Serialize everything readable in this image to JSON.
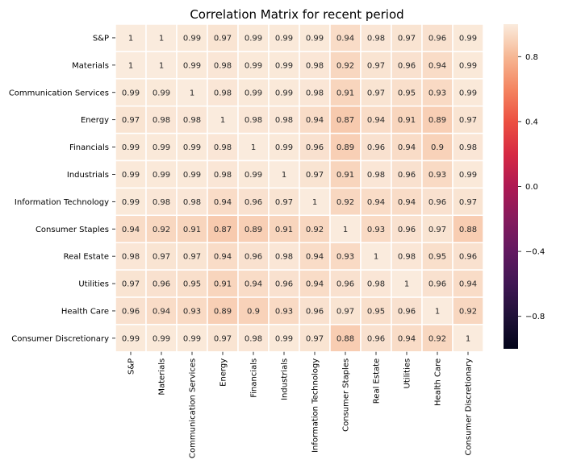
{
  "chart_data": {
    "type": "heatmap",
    "title": "Correlation Matrix for recent period",
    "xlabel": "",
    "ylabel": "",
    "labels": [
      "S&P",
      "Materials",
      "Communication Services",
      "Energy",
      "Financials",
      "Industrials",
      "Information Technology",
      "Consumer Staples",
      "Real Estate",
      "Utilities",
      "Health Care",
      "Consumer Discretionary"
    ],
    "matrix": [
      [
        1,
        1,
        0.99,
        0.97,
        0.99,
        0.99,
        0.99,
        0.94,
        0.98,
        0.97,
        0.96,
        0.99
      ],
      [
        1,
        1,
        0.99,
        0.98,
        0.99,
        0.99,
        0.98,
        0.92,
        0.97,
        0.96,
        0.94,
        0.99
      ],
      [
        0.99,
        0.99,
        1,
        0.98,
        0.99,
        0.99,
        0.98,
        0.91,
        0.97,
        0.95,
        0.93,
        0.99
      ],
      [
        0.97,
        0.98,
        0.98,
        1,
        0.98,
        0.98,
        0.94,
        0.87,
        0.94,
        0.91,
        0.89,
        0.97
      ],
      [
        0.99,
        0.99,
        0.99,
        0.98,
        1,
        0.99,
        0.96,
        0.89,
        0.96,
        0.94,
        0.9,
        0.98
      ],
      [
        0.99,
        0.99,
        0.99,
        0.98,
        0.99,
        1,
        0.97,
        0.91,
        0.98,
        0.96,
        0.93,
        0.99
      ],
      [
        0.99,
        0.98,
        0.98,
        0.94,
        0.96,
        0.97,
        1,
        0.92,
        0.94,
        0.94,
        0.96,
        0.97
      ],
      [
        0.94,
        0.92,
        0.91,
        0.87,
        0.89,
        0.91,
        0.92,
        1,
        0.93,
        0.96,
        0.97,
        0.88
      ],
      [
        0.98,
        0.97,
        0.97,
        0.94,
        0.96,
        0.98,
        0.94,
        0.93,
        1,
        0.98,
        0.95,
        0.96
      ],
      [
        0.97,
        0.96,
        0.95,
        0.91,
        0.94,
        0.96,
        0.94,
        0.96,
        0.98,
        1,
        0.96,
        0.94
      ],
      [
        0.96,
        0.94,
        0.93,
        0.89,
        0.9,
        0.93,
        0.96,
        0.97,
        0.95,
        0.96,
        1,
        0.92
      ],
      [
        0.99,
        0.99,
        0.99,
        0.97,
        0.98,
        0.99,
        0.97,
        0.88,
        0.96,
        0.94,
        0.92,
        1
      ]
    ],
    "colorbar": {
      "range": [
        -1,
        1
      ],
      "ticks": [
        0.8,
        0.4,
        0.0,
        -0.4,
        -0.8
      ],
      "tick_labels": [
        "0.8",
        "0.4",
        "0.0",
        "−0.4",
        "−0.8"
      ],
      "colormap": "rocket"
    },
    "grid": false,
    "cell_separator_color": "#ffffff"
  }
}
